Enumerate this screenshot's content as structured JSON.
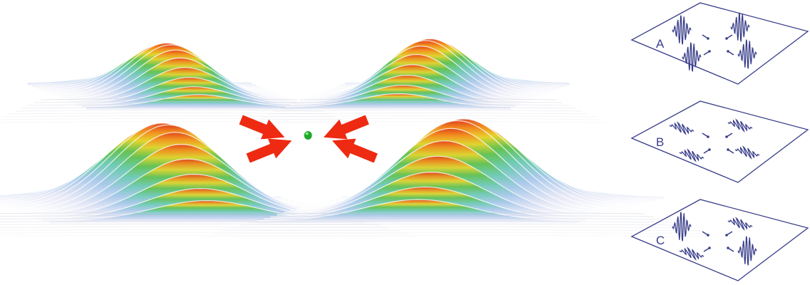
{
  "figure": {
    "main_view": {
      "wavepackets": [
        {
          "id": "back-left",
          "color_scale": [
            "#ffffff",
            "#cfd8f2",
            "#7ec9c5",
            "#58c060",
            "#e8d630",
            "#f08a20",
            "#e0401a"
          ]
        },
        {
          "id": "back-right",
          "color_scale": [
            "#ffffff",
            "#cfd8f2",
            "#7ec9c5",
            "#58c060",
            "#e8d630",
            "#f08a20",
            "#e0401a"
          ]
        },
        {
          "id": "front-left",
          "color_scale": [
            "#ffffff",
            "#cfd8f2",
            "#7ec9c5",
            "#58c060",
            "#e8d630",
            "#f08a20",
            "#e0401a"
          ]
        },
        {
          "id": "front-right",
          "color_scale": [
            "#ffffff",
            "#cfd8f2",
            "#7ec9c5",
            "#58c060",
            "#e8d630",
            "#f08a20",
            "#e0401a"
          ]
        }
      ],
      "arrow_color": "#ee2a12",
      "center_marker_color": "#1faa2a"
    },
    "panels": [
      {
        "label": "A",
        "packets": [
          "vertical",
          "vertical",
          "vertical",
          "vertical"
        ]
      },
      {
        "label": "B",
        "packets": [
          "horizontal",
          "horizontal",
          "horizontal",
          "horizontal"
        ]
      },
      {
        "label": "C",
        "packets": [
          "vertical",
          "horizontal",
          "horizontal",
          "vertical"
        ]
      }
    ],
    "panel_color": "#3a3f8a"
  }
}
